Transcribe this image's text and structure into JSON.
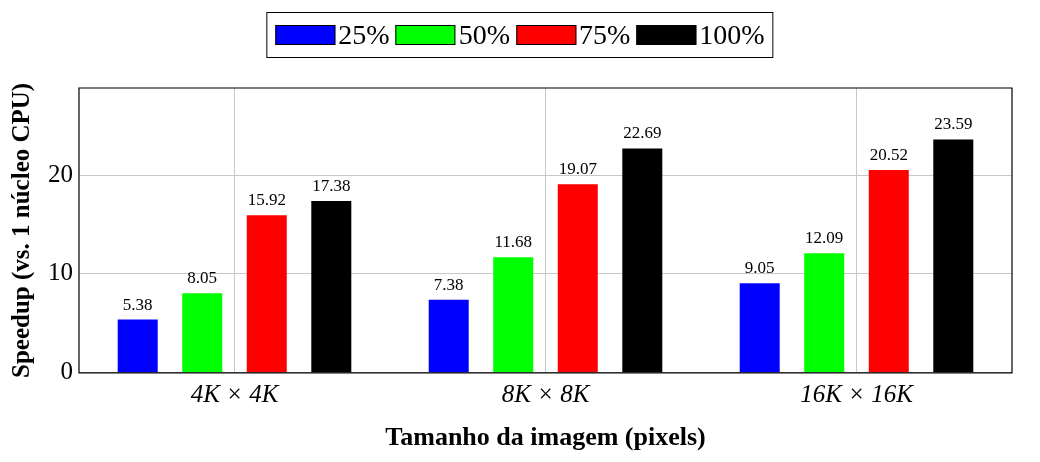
{
  "chart_data": {
    "type": "bar",
    "xlabel": "Tamanho da imagem (pixels)",
    "ylabel": "Speedup (vs. 1 núcleo CPU)",
    "categories": [
      "4K × 4K",
      "8K × 8K",
      "16K × 16K"
    ],
    "series": [
      {
        "name": "25%",
        "color": "#0000ff",
        "values": [
          5.38,
          7.38,
          9.05
        ]
      },
      {
        "name": "50%",
        "color": "#00ff00",
        "values": [
          8.05,
          11.68,
          12.09
        ]
      },
      {
        "name": "75%",
        "color": "#ff0000",
        "values": [
          15.92,
          19.07,
          20.52
        ]
      },
      {
        "name": "100%",
        "color": "#000000",
        "values": [
          17.38,
          22.69,
          23.59
        ]
      }
    ],
    "ylim": [
      0,
      28.8
    ],
    "yticks": [
      0,
      10,
      20
    ],
    "grid": true,
    "legend": "top",
    "data_labels": true
  }
}
